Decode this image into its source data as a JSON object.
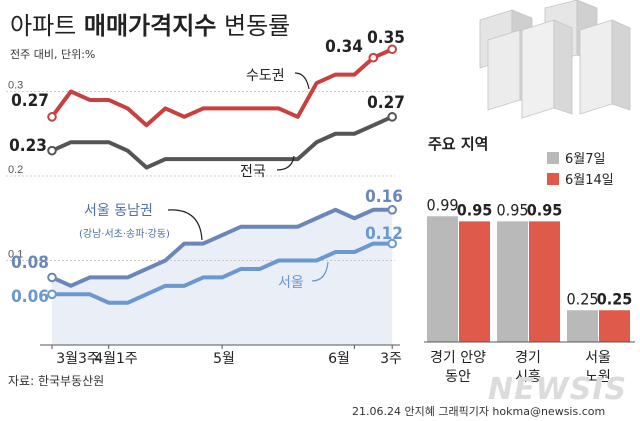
{
  "title_light": "아파트",
  "title_bold": "매매가격지수",
  "title_rest": "변동률",
  "subtitle": "전주 대비, 단위:%",
  "source": "자료: 한국부동산원",
  "credit": "21.06.24 안지혜 그래픽기자 hokma@newsis.com",
  "watermark": "NEWSIS",
  "chart_data": [
    {
      "type": "line",
      "title": "",
      "x": [
        "3월3주",
        "",
        "",
        "4월1주",
        "",
        "",
        "",
        "",
        "",
        "5월",
        "",
        "",
        "",
        "",
        "",
        "",
        "6월",
        "",
        "3주"
      ],
      "xticks": [
        "3월3주",
        "4월1주",
        "5월",
        "6월",
        "3주"
      ],
      "ytick_labels": [
        "0.3",
        "0.2",
        "0.1"
      ],
      "ylim": [
        0.0,
        0.38
      ],
      "series": [
        {
          "name": "수도권",
          "color": "#c8403f",
          "values": [
            0.27,
            0.3,
            0.29,
            0.29,
            0.28,
            0.26,
            0.28,
            0.27,
            0.28,
            0.28,
            0.28,
            0.28,
            0.28,
            0.27,
            0.31,
            0.32,
            0.32,
            0.34,
            0.35
          ]
        },
        {
          "name": "전국",
          "color": "#555555",
          "values": [
            0.23,
            0.24,
            0.24,
            0.24,
            0.23,
            0.21,
            0.22,
            0.22,
            0.22,
            0.22,
            0.22,
            0.22,
            0.22,
            0.22,
            0.24,
            0.25,
            0.25,
            0.26,
            0.27
          ]
        },
        {
          "name": "서울 동남권",
          "color": "#6a87b8",
          "values": [
            0.08,
            0.07,
            0.08,
            0.08,
            0.08,
            0.09,
            0.1,
            0.12,
            0.12,
            0.13,
            0.14,
            0.14,
            0.14,
            0.14,
            0.15,
            0.16,
            0.15,
            0.16,
            0.16
          ]
        },
        {
          "name": "서울",
          "color": "#6a98cf",
          "values": [
            0.06,
            0.06,
            0.06,
            0.05,
            0.05,
            0.06,
            0.07,
            0.07,
            0.08,
            0.08,
            0.09,
            0.09,
            0.1,
            0.1,
            0.1,
            0.11,
            0.11,
            0.12,
            0.12
          ]
        }
      ],
      "labels": {
        "capital": "수도권",
        "national": "전국",
        "seoul_se": "서울 동남권",
        "seoul_se_sub": "(강남·서초·송파·강동)",
        "seoul": "서울"
      },
      "end_labels": {
        "start_capital": "0.27",
        "start_national": "0.23",
        "start_se": "0.08",
        "start_seoul": "0.06",
        "p34": "0.34",
        "end_capital": "0.35",
        "end_national": "0.27",
        "end_se": "0.16",
        "end_seoul": "0.12"
      }
    },
    {
      "type": "bar",
      "title": "주요 지역",
      "categories": [
        "경기 안양 동안",
        "경기 시흥",
        "서울 노원"
      ],
      "category_lines": [
        [
          "경기 안양",
          "동안"
        ],
        [
          "경기",
          "시흥"
        ],
        [
          "서울",
          "노원"
        ]
      ],
      "series": [
        {
          "name": "6월7일",
          "color": "#b9b9b9",
          "values": [
            0.99,
            0.95,
            0.25
          ]
        },
        {
          "name": "6월14일",
          "color": "#e05a4c",
          "values": [
            0.95,
            0.95,
            0.25
          ]
        }
      ],
      "value_labels": [
        [
          "0.99",
          "0.95"
        ],
        [
          "0.95",
          "0.95"
        ],
        [
          "0.25",
          "0.25"
        ]
      ],
      "ylim": [
        0,
        1.0
      ]
    }
  ]
}
